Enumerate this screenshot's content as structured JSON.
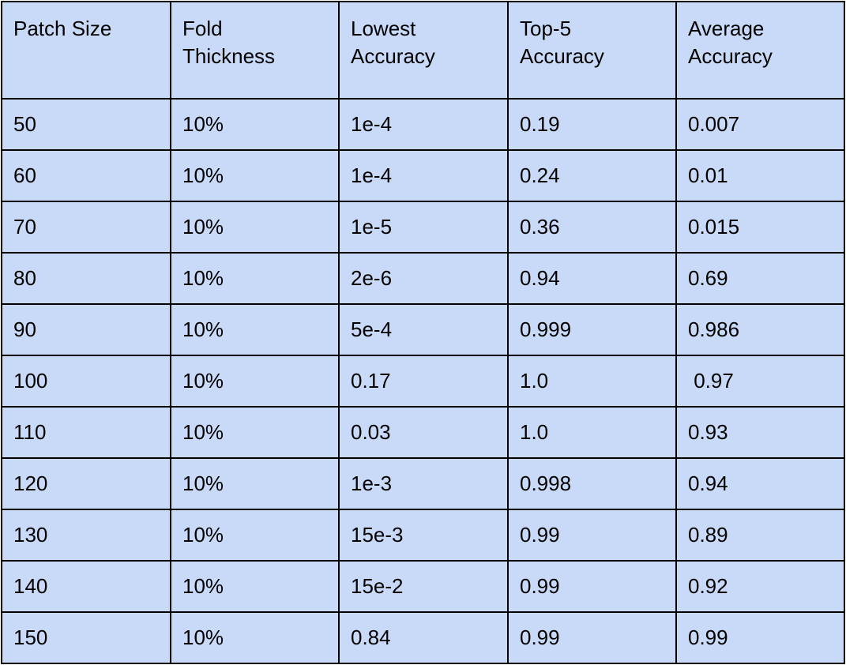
{
  "table": {
    "headers": [
      "Patch Size",
      "Fold\nThickness",
      "Lowest\nAccuracy",
      "Top-5\nAccuracy",
      "Average\nAccuracy"
    ],
    "rows": [
      [
        "50",
        "10%",
        "1e-4",
        "0.19",
        "0.007"
      ],
      [
        "60",
        "10%",
        "1e-4",
        "0.24",
        "0.01"
      ],
      [
        "70",
        "10%",
        "1e-5",
        "0.36",
        "0.015"
      ],
      [
        "80",
        "10%",
        "2e-6",
        "0.94",
        "0.69"
      ],
      [
        "90",
        "10%",
        "5e-4",
        "0.999",
        "0.986"
      ],
      [
        "100",
        "10%",
        "0.17",
        "1.0",
        " 0.97"
      ],
      [
        "110",
        "10%",
        "0.03",
        "1.0",
        "0.93"
      ],
      [
        "120",
        "10%",
        "1e-3",
        "0.998",
        "0.94"
      ],
      [
        "130",
        "10%",
        "15e-3",
        "0.99",
        "0.89"
      ],
      [
        "140",
        "10%",
        "15e-2",
        "0.99",
        "0.92"
      ],
      [
        "150",
        "10%",
        "0.84",
        "0.99",
        "0.99"
      ]
    ]
  },
  "colors": {
    "cell_background": "#c9daf8",
    "border": "#000000",
    "text": "#000000"
  }
}
